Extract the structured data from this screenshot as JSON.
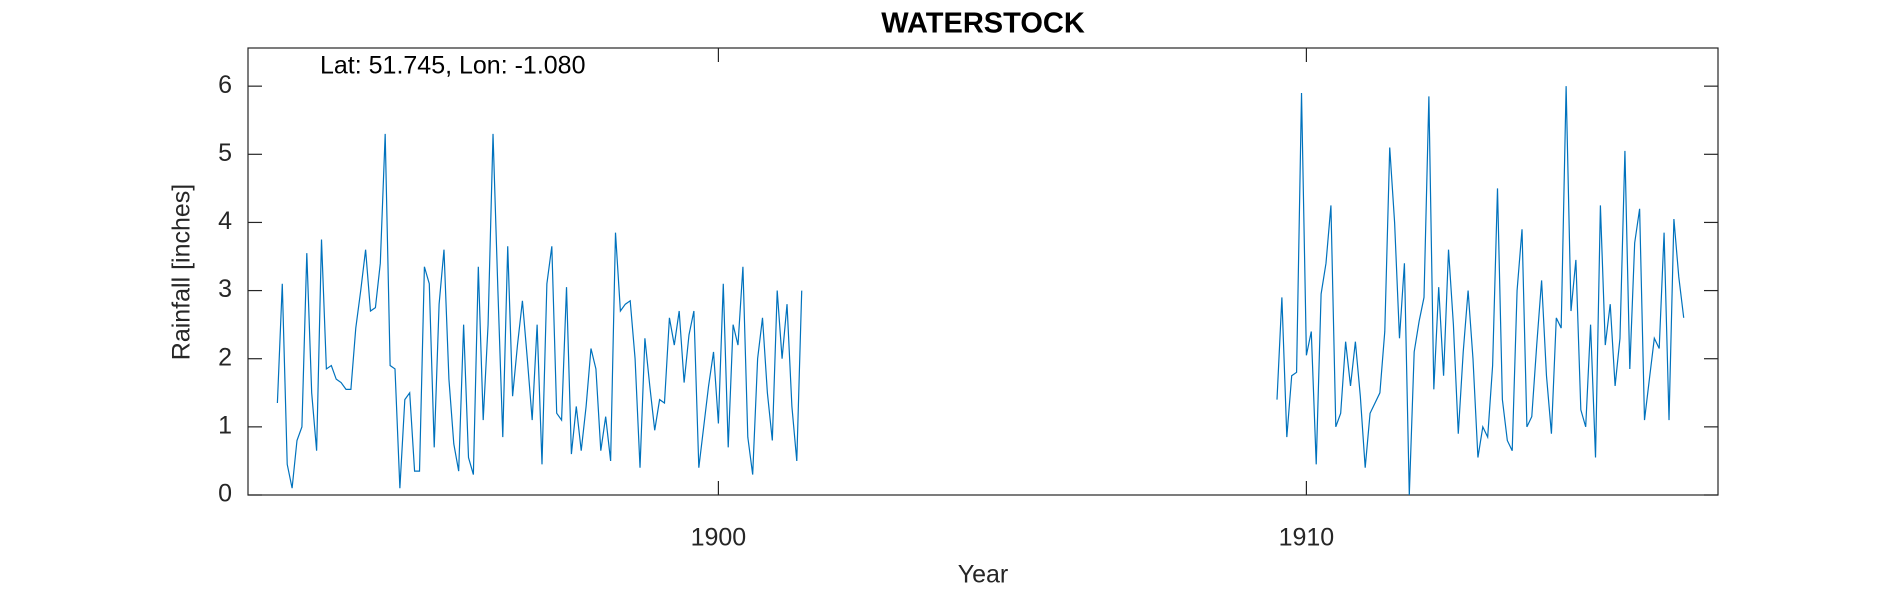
{
  "chart_data": {
    "type": "line",
    "title": "WATERSTOCK",
    "annotation": "Lat: 51.745, Lon: -1.080",
    "x_label": "Year",
    "y_label": "Rainfall [inches]",
    "color": "#0072bd",
    "xlim": [
      1892,
      1917
    ],
    "xticks": [
      1900,
      1910
    ],
    "ylim": [
      0,
      6.56
    ],
    "yticks": [
      0,
      1,
      2,
      3,
      4,
      5,
      6
    ],
    "x": [
      1892.5,
      1892.583,
      1892.667,
      1892.75,
      1892.833,
      1892.917,
      1893,
      1893.083,
      1893.167,
      1893.25,
      1893.333,
      1893.417,
      1893.5,
      1893.583,
      1893.667,
      1893.75,
      1893.833,
      1893.917,
      1894,
      1894.083,
      1894.167,
      1894.25,
      1894.333,
      1894.417,
      1894.5,
      1894.583,
      1894.667,
      1894.75,
      1894.833,
      1894.917,
      1895,
      1895.083,
      1895.167,
      1895.25,
      1895.333,
      1895.417,
      1895.5,
      1895.583,
      1895.667,
      1895.75,
      1895.833,
      1895.917,
      1896,
      1896.083,
      1896.167,
      1896.25,
      1896.333,
      1896.417,
      1896.5,
      1896.583,
      1896.667,
      1896.75,
      1896.833,
      1896.917,
      1897,
      1897.083,
      1897.167,
      1897.25,
      1897.333,
      1897.417,
      1897.5,
      1897.583,
      1897.667,
      1897.75,
      1897.833,
      1897.917,
      1898,
      1898.083,
      1898.167,
      1898.25,
      1898.333,
      1898.417,
      1898.5,
      1898.583,
      1898.667,
      1898.75,
      1898.833,
      1898.917,
      1899,
      1899.083,
      1899.167,
      1899.25,
      1899.333,
      1899.417,
      1899.5,
      1899.583,
      1899.667,
      1899.75,
      1899.833,
      1899.917,
      1900,
      1900.083,
      1900.167,
      1900.25,
      1900.333,
      1900.417,
      1900.5,
      1900.583,
      1900.667,
      1900.75,
      1900.833,
      1900.917,
      1901,
      1901.083,
      1901.167,
      1901.25,
      1901.333,
      1901.417,
      1905.5,
      1909.5,
      1909.583,
      1909.667,
      1909.75,
      1909.833,
      1909.917,
      1910,
      1910.083,
      1910.167,
      1910.25,
      1910.333,
      1910.417,
      1910.5,
      1910.583,
      1910.667,
      1910.75,
      1910.833,
      1910.917,
      1911,
      1911.083,
      1911.167,
      1911.25,
      1911.333,
      1911.417,
      1911.5,
      1911.583,
      1911.667,
      1911.75,
      1911.833,
      1911.917,
      1912,
      1912.083,
      1912.167,
      1912.25,
      1912.333,
      1912.417,
      1912.5,
      1912.583,
      1912.667,
      1912.75,
      1912.833,
      1912.917,
      1913,
      1913.083,
      1913.167,
      1913.25,
      1913.333,
      1913.417,
      1913.5,
      1913.583,
      1913.667,
      1913.75,
      1913.833,
      1913.917,
      1914,
      1914.083,
      1914.167,
      1914.25,
      1914.333,
      1914.417,
      1914.5,
      1914.583,
      1914.667,
      1914.75,
      1914.833,
      1914.917,
      1915,
      1915.083,
      1915.167,
      1915.25,
      1915.333,
      1915.417,
      1915.5,
      1915.583,
      1915.667,
      1915.75,
      1915.833,
      1915.917,
      1916,
      1916.083,
      1916.167,
      1916.25,
      1916.333,
      1916.417
    ],
    "values": [
      1.35,
      3.1,
      0.45,
      0.1,
      0.8,
      1.0,
      3.55,
      1.5,
      0.65,
      3.75,
      1.85,
      1.9,
      1.7,
      1.65,
      1.55,
      1.55,
      2.45,
      3.0,
      3.6,
      2.7,
      2.75,
      3.4,
      5.3,
      1.9,
      1.85,
      0.1,
      1.4,
      1.5,
      0.35,
      0.35,
      3.35,
      3.1,
      0.7,
      2.8,
      3.6,
      1.7,
      0.75,
      0.35,
      2.5,
      0.55,
      0.3,
      3.35,
      1.1,
      2.5,
      5.3,
      3.0,
      0.85,
      3.65,
      1.45,
      2.2,
      2.85,
      2.0,
      1.1,
      2.5,
      0.45,
      3.1,
      3.65,
      1.2,
      1.1,
      3.05,
      0.6,
      1.3,
      0.65,
      1.3,
      2.15,
      1.85,
      0.65,
      1.15,
      0.5,
      3.85,
      2.7,
      2.8,
      2.85,
      2.0,
      0.4,
      2.3,
      1.6,
      0.95,
      1.4,
      1.35,
      2.6,
      2.2,
      2.7,
      1.65,
      2.35,
      2.7,
      0.4,
      1.0,
      1.6,
      2.1,
      1.05,
      3.1,
      0.7,
      2.5,
      2.2,
      3.35,
      0.85,
      0.3,
      2.0,
      2.6,
      1.5,
      0.8,
      3.0,
      2.0,
      2.8,
      1.3,
      0.5,
      3.0,
      null,
      1.4,
      2.9,
      0.85,
      1.75,
      1.8,
      5.9,
      2.05,
      2.4,
      0.45,
      2.95,
      3.4,
      4.25,
      1.0,
      1.2,
      2.25,
      1.6,
      2.25,
      1.45,
      0.4,
      1.2,
      1.35,
      1.5,
      2.4,
      5.1,
      4.0,
      2.3,
      3.4,
      0.0,
      2.1,
      2.55,
      2.9,
      5.85,
      1.55,
      3.05,
      1.75,
      3.6,
      2.5,
      0.9,
      2.1,
      3.0,
      2.0,
      0.55,
      1.0,
      0.85,
      1.9,
      4.5,
      1.4,
      0.8,
      0.65,
      3.0,
      3.9,
      1.0,
      1.15,
      2.2,
      3.15,
      1.75,
      0.9,
      2.6,
      2.45,
      6.0,
      2.7,
      3.45,
      1.25,
      1.0,
      2.5,
      0.55,
      4.25,
      2.2,
      2.8,
      1.6,
      2.3,
      5.05,
      1.85,
      3.7,
      4.2,
      1.1,
      1.7,
      2.3,
      2.15,
      3.85,
      1.1,
      4.05,
      3.2,
      2.6
    ]
  }
}
